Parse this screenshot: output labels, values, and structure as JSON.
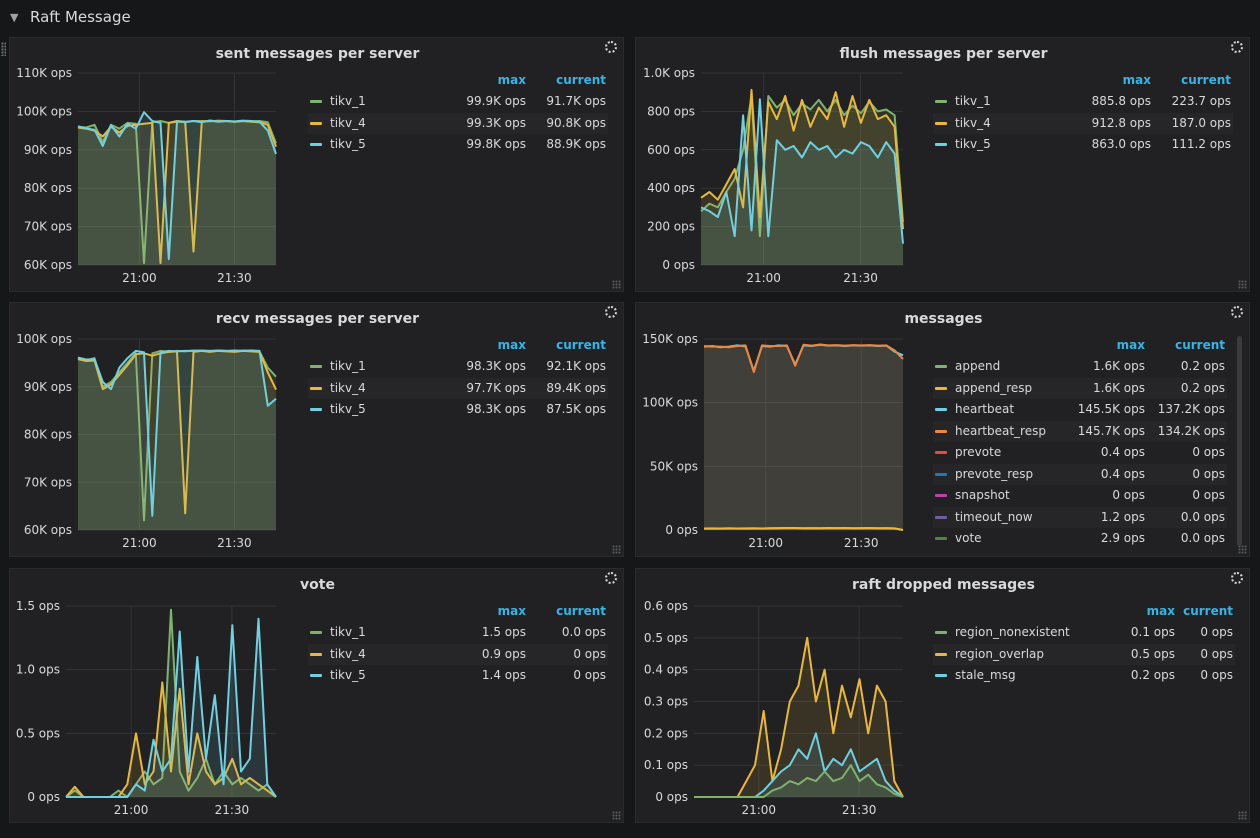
{
  "row": {
    "title": "Raft Message"
  },
  "colors": {
    "green": "#7eb26d",
    "yellow": "#eab839",
    "cyan": "#6ed0e0",
    "orange": "#ef843c",
    "blue": "#1f78c1",
    "grey": "#705da0",
    "legend_header": "#33b5e5",
    "panel_bg": "#212124",
    "page_bg": "#161719"
  },
  "panels": [
    {
      "title": "sent messages per server",
      "headers": {
        "max": "max",
        "current": "current"
      },
      "legend": [
        {
          "name": "tikv_1",
          "max": "99.9K ops",
          "current": "91.7K ops",
          "color": "#7eb26d"
        },
        {
          "name": "tikv_4",
          "max": "99.3K ops",
          "current": "90.8K ops",
          "color": "#eab839"
        },
        {
          "name": "tikv_5",
          "max": "99.8K ops",
          "current": "88.9K ops",
          "color": "#6ed0e0"
        }
      ]
    },
    {
      "title": "flush messages per server",
      "headers": {
        "max": "max",
        "current": "current"
      },
      "legend": [
        {
          "name": "tikv_1",
          "max": "885.8 ops",
          "current": "223.7 ops",
          "color": "#7eb26d"
        },
        {
          "name": "tikv_4",
          "max": "912.8 ops",
          "current": "187.0 ops",
          "color": "#eab839"
        },
        {
          "name": "tikv_5",
          "max": "863.0 ops",
          "current": "111.2 ops",
          "color": "#6ed0e0"
        }
      ]
    },
    {
      "title": "recv messages per server",
      "headers": {
        "max": "max",
        "current": "current"
      },
      "legend": [
        {
          "name": "tikv_1",
          "max": "98.3K ops",
          "current": "92.1K ops",
          "color": "#7eb26d"
        },
        {
          "name": "tikv_4",
          "max": "97.7K ops",
          "current": "89.4K ops",
          "color": "#eab839"
        },
        {
          "name": "tikv_5",
          "max": "98.3K ops",
          "current": "87.5K ops",
          "color": "#6ed0e0"
        }
      ]
    },
    {
      "title": "messages",
      "headers": {
        "max": "max",
        "current": "current"
      },
      "legend": [
        {
          "name": "append",
          "max": "1.6K ops",
          "current": "0.2 ops",
          "color": "#7eb26d"
        },
        {
          "name": "append_resp",
          "max": "1.6K ops",
          "current": "0.2 ops",
          "color": "#eab839"
        },
        {
          "name": "heartbeat",
          "max": "145.5K ops",
          "current": "137.2K ops",
          "color": "#6ed0e0"
        },
        {
          "name": "heartbeat_resp",
          "max": "145.7K ops",
          "current": "134.2K ops",
          "color": "#ef843c"
        },
        {
          "name": "prevote",
          "max": "0.4 ops",
          "current": "0 ops",
          "color": "#e24d42"
        },
        {
          "name": "prevote_resp",
          "max": "0.4 ops",
          "current": "0 ops",
          "color": "#1f78c1"
        },
        {
          "name": "snapshot",
          "max": "0 ops",
          "current": "0 ops",
          "color": "#ba43a9"
        },
        {
          "name": "timeout_now",
          "max": "1.2 ops",
          "current": "0.0 ops",
          "color": "#705da0"
        },
        {
          "name": "vote",
          "max": "2.9 ops",
          "current": "0.0 ops",
          "color": "#508642"
        }
      ]
    },
    {
      "title": "vote",
      "headers": {
        "max": "max",
        "current": "current"
      },
      "legend": [
        {
          "name": "tikv_1",
          "max": "1.5 ops",
          "current": "0.0 ops",
          "color": "#7eb26d"
        },
        {
          "name": "tikv_4",
          "max": "0.9 ops",
          "current": "0 ops",
          "color": "#eab839"
        },
        {
          "name": "tikv_5",
          "max": "1.4 ops",
          "current": "0 ops",
          "color": "#6ed0e0"
        }
      ]
    },
    {
      "title": "raft dropped messages",
      "headers": {
        "max": "max",
        "current": "current"
      },
      "legend": [
        {
          "name": "region_nonexistent",
          "max": "0.1 ops",
          "current": "0 ops",
          "color": "#7eb26d"
        },
        {
          "name": "region_overlap",
          "max": "0.5 ops",
          "current": "0 ops",
          "color": "#eab839"
        },
        {
          "name": "stale_msg",
          "max": "0.2 ops",
          "current": "0 ops",
          "color": "#6ed0e0"
        }
      ]
    }
  ],
  "chart_data": [
    {
      "type": "line",
      "title": "sent messages per server",
      "yticks": [
        "60K ops",
        "70K ops",
        "80K ops",
        "90K ops",
        "100K ops",
        "110K ops"
      ],
      "xticks": [
        "21:00",
        "21:30"
      ],
      "ylim": [
        60000,
        110000
      ],
      "series": [
        {
          "name": "tikv_1",
          "values": [
            96000,
            95800,
            96500,
            92000,
            96500,
            95500,
            97000,
            96800,
            60500,
            97200,
            97500,
            97000,
            97300,
            97200,
            97500,
            97500,
            97400,
            97600,
            97500,
            97300,
            97500,
            97400,
            97500,
            97200,
            91700
          ]
        },
        {
          "name": "tikv_4",
          "values": [
            95800,
            95500,
            95000,
            93500,
            96000,
            94500,
            96200,
            96500,
            96800,
            97000,
            60500,
            97000,
            97500,
            97300,
            63500,
            97300,
            97600,
            97400,
            97500,
            97300,
            97500,
            97300,
            97200,
            96500,
            90800
          ]
        },
        {
          "name": "tikv_5",
          "values": [
            96100,
            95600,
            95200,
            91000,
            96400,
            93500,
            96800,
            95500,
            99800,
            97500,
            97000,
            61500,
            97400,
            97300,
            97500,
            97200,
            97600,
            97300,
            97500,
            97400,
            97600,
            97500,
            97300,
            95000,
            88900
          ]
        }
      ]
    },
    {
      "type": "line",
      "title": "flush messages per server",
      "yticks": [
        "0 ops",
        "200 ops",
        "400 ops",
        "600 ops",
        "800 ops",
        "1.0K ops"
      ],
      "xticks": [
        "21:00",
        "21:30"
      ],
      "ylim": [
        0,
        1000
      ],
      "series": [
        {
          "name": "tikv_1",
          "values": [
            280,
            320,
            300,
            380,
            450,
            600,
            880,
            150,
            880,
            820,
            860,
            780,
            840,
            810,
            860,
            800,
            860,
            780,
            830,
            790,
            850,
            800,
            810,
            780,
            224
          ]
        },
        {
          "name": "tikv_4",
          "values": [
            350,
            380,
            340,
            420,
            500,
            300,
            912,
            250,
            850,
            760,
            880,
            700,
            860,
            720,
            820,
            760,
            900,
            720,
            880,
            740,
            860,
            760,
            780,
            720,
            187
          ]
        },
        {
          "name": "tikv_5",
          "values": [
            300,
            280,
            250,
            380,
            150,
            780,
            180,
            863,
            150,
            650,
            600,
            620,
            560,
            640,
            600,
            620,
            560,
            600,
            580,
            640,
            620,
            560,
            640,
            580,
            111
          ]
        }
      ]
    },
    {
      "type": "line",
      "title": "recv messages per server",
      "yticks": [
        "60K ops",
        "70K ops",
        "80K ops",
        "90K ops",
        "100K ops"
      ],
      "xticks": [
        "21:00",
        "21:30"
      ],
      "ylim": [
        60000,
        100000
      ],
      "series": [
        {
          "name": "tikv_1",
          "values": [
            96000,
            95500,
            96000,
            90000,
            91000,
            93000,
            95000,
            97000,
            62000,
            97000,
            97500,
            97300,
            97500,
            97400,
            97600,
            97500,
            97400,
            97600,
            97500,
            97400,
            97600,
            97500,
            97400,
            94000,
            92100
          ]
        },
        {
          "name": "tikv_4",
          "values": [
            95800,
            95400,
            95500,
            89500,
            90500,
            92500,
            94500,
            96800,
            97000,
            96500,
            97000,
            97300,
            97400,
            63500,
            97300,
            97500,
            97300,
            97500,
            97400,
            97300,
            97500,
            97400,
            97300,
            93000,
            89400
          ]
        },
        {
          "name": "tikv_5",
          "values": [
            96100,
            95700,
            95800,
            91000,
            89500,
            94000,
            96000,
            97500,
            97200,
            63000,
            97200,
            97500,
            97400,
            97500,
            97500,
            97600,
            97500,
            97600,
            97500,
            97600,
            97500,
            97600,
            97500,
            86000,
            87500
          ]
        }
      ]
    },
    {
      "type": "line",
      "title": "messages",
      "yticks": [
        "0 ops",
        "50K ops",
        "100K ops",
        "150K ops"
      ],
      "xticks": [
        "21:00",
        "21:30"
      ],
      "ylim": [
        0,
        150000
      ],
      "series": [
        {
          "name": "heartbeat",
          "values": [
            144000,
            144500,
            143500,
            144000,
            145000,
            144200,
            125000,
            144500,
            144000,
            145000,
            144500,
            130000,
            145000,
            144500,
            145500,
            144800,
            145000,
            144500,
            145000,
            144800,
            145000,
            144500,
            144800,
            140000,
            137200
          ]
        },
        {
          "name": "heartbeat_resp",
          "values": [
            144500,
            144000,
            144000,
            143500,
            144500,
            145000,
            124000,
            145000,
            144500,
            144500,
            145000,
            129000,
            145500,
            144800,
            145700,
            145000,
            145200,
            144800,
            145200,
            145000,
            145200,
            144800,
            145000,
            141000,
            134200
          ]
        },
        {
          "name": "append",
          "values": [
            1100,
            1150,
            1100,
            1200,
            1150,
            1100,
            1200,
            1150,
            1300,
            1400,
            1600,
            1500,
            1400,
            1450,
            1400,
            1500,
            1450,
            1500,
            1400,
            1450,
            1500,
            1400,
            1450,
            1200,
            0.2
          ]
        },
        {
          "name": "append_resp",
          "values": [
            1200,
            1250,
            1150,
            1300,
            1200,
            1250,
            1300,
            1200,
            1400,
            1500,
            1600,
            1550,
            1450,
            1500,
            1450,
            1550,
            1500,
            1550,
            1450,
            1500,
            1550,
            1450,
            1500,
            1250,
            0.2
          ]
        }
      ]
    },
    {
      "type": "area",
      "title": "vote",
      "yticks": [
        "0 ops",
        "0.5 ops",
        "1.0 ops",
        "1.5 ops"
      ],
      "xticks": [
        "21:00",
        "21:30"
      ],
      "ylim": [
        0,
        1.5
      ],
      "series": [
        {
          "name": "tikv_1",
          "values": [
            0,
            0.05,
            0,
            0,
            0,
            0,
            0.05,
            0,
            0.1,
            0.2,
            0.1,
            0.15,
            1.47,
            0.2,
            0.05,
            0.15,
            0.3,
            0.1,
            0.2,
            0.1,
            0.15,
            0.1,
            0.05,
            0.1,
            0
          ]
        },
        {
          "name": "tikv_4",
          "values": [
            0,
            0.08,
            0,
            0,
            0,
            0,
            0,
            0.1,
            0.5,
            0.1,
            0.2,
            0.9,
            0.2,
            0.85,
            0.1,
            0.5,
            0.2,
            0.1,
            0.15,
            0.3,
            0.1,
            0.15,
            0.1,
            0.05,
            0
          ]
        },
        {
          "name": "tikv_5",
          "values": [
            0,
            0,
            0,
            0,
            0,
            0,
            0,
            0,
            0.1,
            0.05,
            0.45,
            0.2,
            0.3,
            1.3,
            0.2,
            1.1,
            0.3,
            0.8,
            0.1,
            1.35,
            0.2,
            0.3,
            1.4,
            0.1,
            0
          ]
        }
      ]
    },
    {
      "type": "area",
      "title": "raft dropped messages",
      "yticks": [
        "0 ops",
        "0.1 ops",
        "0.2 ops",
        "0.3 ops",
        "0.4 ops",
        "0.5 ops",
        "0.6 ops"
      ],
      "xticks": [
        "21:00",
        "21:30"
      ],
      "ylim": [
        0,
        0.6
      ],
      "series": [
        {
          "name": "region_overlap",
          "values": [
            0,
            0,
            0,
            0,
            0,
            0,
            0.05,
            0.1,
            0.27,
            0.05,
            0.15,
            0.3,
            0.35,
            0.5,
            0.3,
            0.4,
            0.2,
            0.35,
            0.25,
            0.37,
            0.2,
            0.35,
            0.3,
            0.05,
            0
          ]
        },
        {
          "name": "stale_msg",
          "values": [
            0,
            0,
            0,
            0,
            0,
            0,
            0,
            0,
            0.02,
            0.05,
            0.08,
            0.1,
            0.15,
            0.12,
            0.2,
            0.08,
            0.12,
            0.1,
            0.15,
            0.08,
            0.1,
            0.12,
            0.05,
            0.02,
            0
          ]
        },
        {
          "name": "region_nonexistent",
          "values": [
            0,
            0,
            0,
            0,
            0,
            0,
            0,
            0,
            0,
            0.02,
            0.03,
            0.05,
            0.04,
            0.06,
            0.05,
            0.08,
            0.05,
            0.06,
            0.1,
            0.05,
            0.07,
            0.04,
            0.03,
            0.01,
            0
          ]
        }
      ]
    }
  ]
}
